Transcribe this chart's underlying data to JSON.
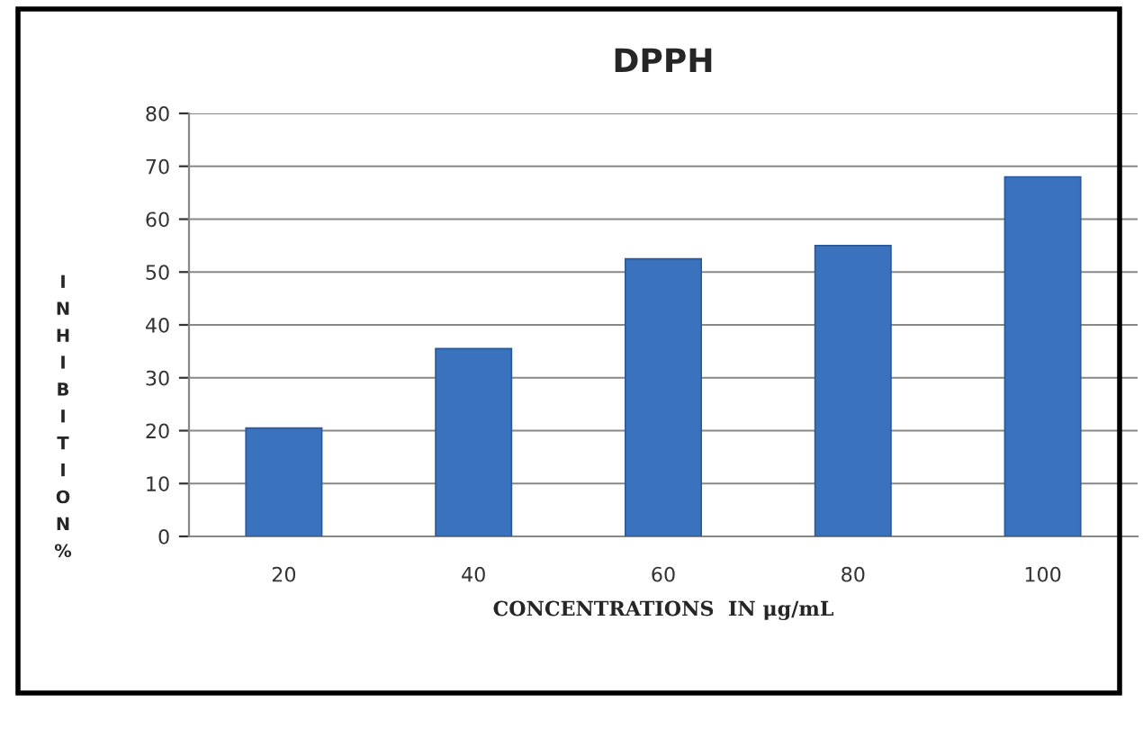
{
  "chart_data": {
    "type": "bar",
    "title": "DPPH",
    "xlabel": "CONCENTRATIONS  IN μg/mL",
    "ylabel": "INHIBITION%",
    "categories": [
      "20",
      "40",
      "60",
      "80",
      "100"
    ],
    "values": [
      20.5,
      35.5,
      52.5,
      55,
      68
    ],
    "color": "#3a72be",
    "ylim": [
      0,
      80
    ],
    "yticks": [
      0,
      10,
      20,
      30,
      40,
      50,
      60,
      70,
      80
    ],
    "grid": "y"
  }
}
